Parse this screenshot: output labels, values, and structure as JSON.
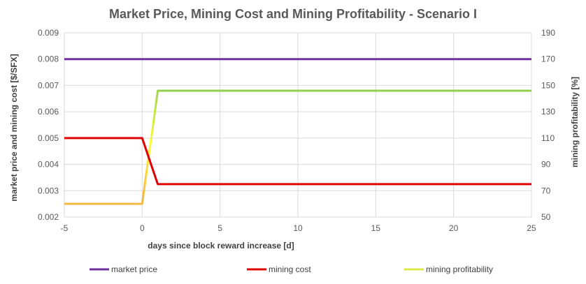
{
  "chart_data": {
    "type": "line",
    "title": "Market Price, Mining Cost and Mining Profitability - Scenario I",
    "xlabel": "days since block reward increase [d]",
    "ylabel": "market price and mining cost [$/SFX]",
    "y2label": "mining profitability [%]",
    "xlim": [
      -5,
      25
    ],
    "ylim": [
      0.002,
      0.009
    ],
    "y2lim": [
      50,
      190
    ],
    "x_ticks": [
      "-5",
      "0",
      "5",
      "10",
      "15",
      "20",
      "25"
    ],
    "x_tick_values": [
      -5,
      0,
      5,
      10,
      15,
      20,
      25
    ],
    "y_ticks": [
      "0.002",
      "0.003",
      "0.004",
      "0.005",
      "0.006",
      "0.007",
      "0.008",
      "0.009"
    ],
    "y_tick_values": [
      0.002,
      0.003,
      0.004,
      0.005,
      0.006,
      0.007,
      0.008,
      0.009
    ],
    "y2_ticks": [
      "50",
      "70",
      "90",
      "110",
      "130",
      "150",
      "170",
      "190"
    ],
    "y2_tick_values": [
      50,
      70,
      90,
      110,
      130,
      150,
      170,
      190
    ],
    "grid": true,
    "legend_position": "bottom",
    "series": [
      {
        "name": "market price",
        "axis": "left",
        "color": "#7030A0",
        "x": [
          -5,
          0,
          1,
          25
        ],
        "y": [
          0.008,
          0.008,
          0.008,
          0.008
        ]
      },
      {
        "name": "mining cost",
        "axis": "left",
        "color": "#E00000",
        "x": [
          -5,
          0,
          1,
          25
        ],
        "y": [
          0.005,
          0.005,
          0.00325,
          0.00325
        ]
      },
      {
        "name": "mining profitability",
        "axis": "right",
        "color": "#92D050",
        "gradient": [
          "#F4B942",
          "#FFFF33",
          "#92D050"
        ],
        "x": [
          -5,
          0,
          1,
          25
        ],
        "y": [
          60,
          60,
          146,
          146
        ]
      }
    ]
  }
}
